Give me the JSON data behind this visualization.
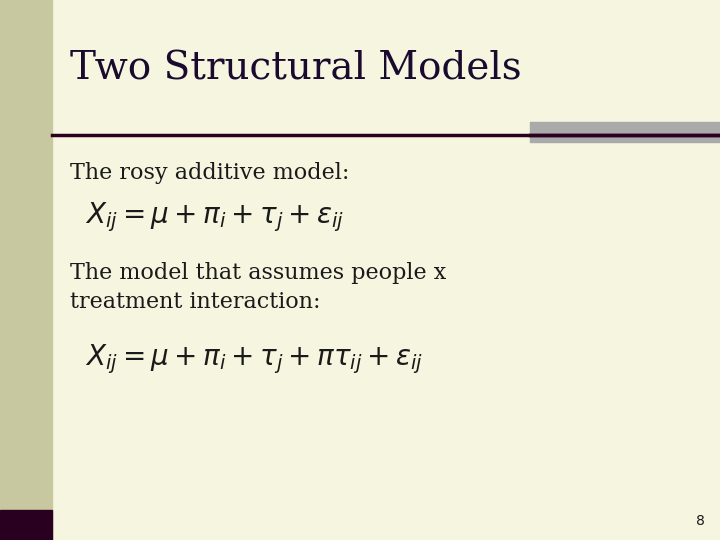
{
  "title": "Two Structural Models",
  "slide_bg": "#f5f5e0",
  "left_bar_color": "#c8c8a0",
  "title_color": "#1a0a2e",
  "text_color": "#1a1a1a",
  "title_fontsize": 28,
  "body_fontsize": 16,
  "formula_fontsize": 20,
  "line_color": "#2a0020",
  "gray_rect_color": "#aaaaaa",
  "bottom_accent_color": "#2a0020",
  "line1_text": "The rosy additive model:",
  "formula1": "$X_{ij} = \\mu + \\pi_i + \\tau_j + \\varepsilon_{ij}$",
  "line2_text": "The model that assumes people x\ntreatment interaction:",
  "formula2": "$X_{ij} = \\mu + \\pi_i + \\tau_j + \\pi\\tau_{ij} + \\varepsilon_{ij}$",
  "page_number": "8"
}
